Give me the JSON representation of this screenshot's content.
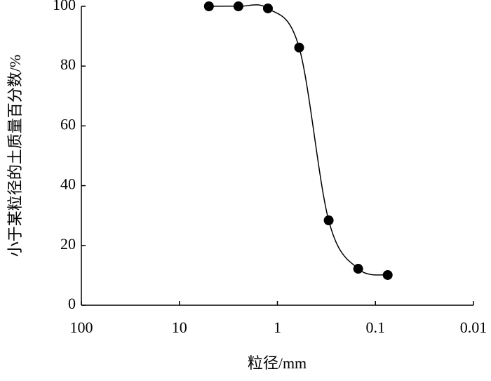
{
  "chart_data": {
    "type": "line",
    "x_label": "粒径/mm",
    "y_label": "小于某粒径的土质量百分数/%",
    "x": [
      5,
      2.5,
      1.25,
      0.6,
      0.3,
      0.15,
      0.075
    ],
    "series": [
      {
        "color": "#000000",
        "values": [
          100,
          100,
          99.3,
          86.2,
          28.4,
          12.2,
          10.1
        ]
      }
    ],
    "xscale": "log",
    "xlim": [
      100,
      0.01
    ],
    "xticks": [
      100,
      10,
      1,
      0.1,
      0.01
    ],
    "ylim": [
      0,
      100
    ],
    "yticks": [
      0,
      20,
      40,
      60,
      80,
      100
    ],
    "grid": false
  }
}
